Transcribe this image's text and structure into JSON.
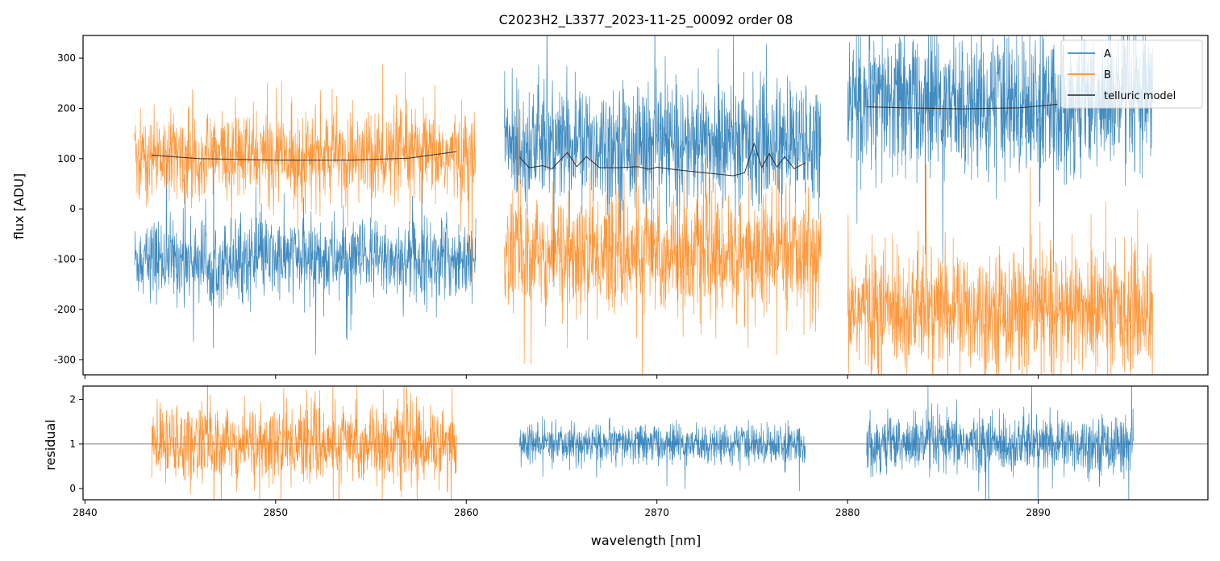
{
  "figure": {
    "title": "C2023H2_L3377_2023-11-25_00092  order 08"
  },
  "colors": {
    "A": "#1f77b4",
    "B": "#ff7f0e",
    "telluric": "#222222",
    "unity_line": "#555555"
  },
  "chart_data": [
    {
      "panel": "top",
      "type": "line",
      "xlabel": "",
      "ylabel": "flux [ADU]",
      "xlim": [
        2839.9,
        2898.9
      ],
      "ylim": [
        -330,
        345
      ],
      "yticks": [
        300,
        200,
        100,
        0,
        -100,
        -200,
        -300
      ],
      "xticks": [
        2840,
        2850,
        2860,
        2870,
        2880,
        2890
      ],
      "legend": {
        "placement": "top-right",
        "entries": [
          "A",
          "B",
          "telluric model"
        ]
      },
      "segments": [
        {
          "x_range": [
            2842.6,
            2860.5
          ],
          "A_mean": -100,
          "A_noise": 40,
          "B_mean": 105,
          "B_noise": 45
        },
        {
          "x_range": [
            2862.0,
            2878.6
          ],
          "A_mean": 130,
          "A_noise": 60,
          "B_mean": -90,
          "B_noise": 60
        },
        {
          "x_range": [
            2880.0,
            2896.0
          ],
          "A_mean": 210,
          "A_noise": 70,
          "B_mean": -200,
          "B_noise": 60
        }
      ],
      "series": [
        {
          "name": "A"
        },
        {
          "name": "B"
        },
        {
          "name": "telluric model",
          "segments": [
            {
              "x": [
                2843.5,
                2846,
                2850,
                2854,
                2857,
                2859.5
              ],
              "y": [
                107,
                100,
                97,
                97,
                101,
                114
              ]
            },
            {
              "x": [
                2862.8,
                2863.3,
                2864,
                2864.5,
                2865.3,
                2865.8,
                2866.3,
                2867,
                2868,
                2869,
                2869.6,
                2870,
                2871,
                2872,
                2873,
                2874,
                2874.6,
                2875.1,
                2875.5,
                2875.9,
                2876.3,
                2876.7,
                2877.2,
                2877.8
              ],
              "y": [
                103,
                82,
                86,
                80,
                112,
                84,
                104,
                82,
                82,
                84,
                79,
                83,
                78,
                74,
                70,
                66,
                72,
                130,
                82,
                110,
                83,
                104,
                80,
                92
              ]
            },
            {
              "x": [
                2881,
                2883,
                2886,
                2889,
                2891
              ],
              "y": [
                203,
                201,
                199,
                201,
                208
              ]
            }
          ]
        }
      ]
    },
    {
      "panel": "bottom",
      "type": "line",
      "xlabel": "wavelength [nm]",
      "ylabel": "residual",
      "xlim": [
        2839.9,
        2898.9
      ],
      "ylim": [
        -0.25,
        2.3
      ],
      "yticks": [
        2,
        1,
        0
      ],
      "xticks": [
        2840,
        2850,
        2860,
        2870,
        2880,
        2890
      ],
      "reference_line": 1,
      "segments": [
        {
          "x_range": [
            2843.5,
            2859.5
          ],
          "series": "B",
          "mean": 1.0,
          "noise": 0.45
        },
        {
          "x_range": [
            2862.8,
            2877.8
          ],
          "series": "A",
          "mean": 1.0,
          "noise": 0.22
        },
        {
          "x_range": [
            2881.0,
            2895.0
          ],
          "series": "A",
          "mean": 1.0,
          "noise": 0.32
        }
      ]
    }
  ]
}
